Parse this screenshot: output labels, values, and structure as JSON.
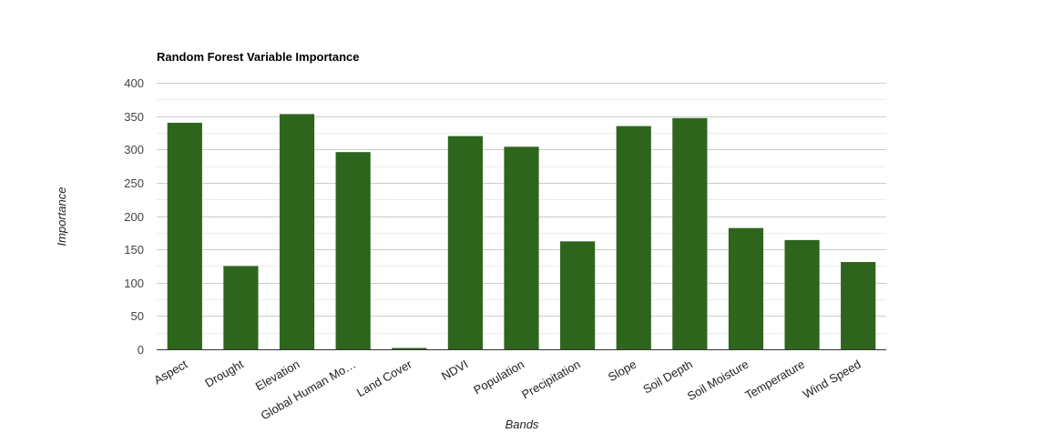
{
  "chart_data": {
    "type": "bar",
    "title": "Random Forest Variable Importance",
    "xlabel": "Bands",
    "ylabel": "Importance",
    "categories": [
      "Aspect",
      "Drought",
      "Elevation",
      "Global Human Mo…",
      "Land Cover",
      "NDVI",
      "Population",
      "Precipitation",
      "Slope",
      "Soil Depth",
      "Soil Moisture",
      "Temperature",
      "Wind Speed"
    ],
    "values": [
      340,
      125,
      353,
      296,
      2,
      320,
      304,
      162,
      335,
      347,
      182,
      164,
      131
    ],
    "ylim": [
      0,
      400
    ],
    "yticks": [
      0,
      50,
      100,
      150,
      200,
      250,
      300,
      350,
      400
    ],
    "grid": true,
    "legend": "none",
    "bar_color": "#2e651d",
    "gridline_color": "#cccccc",
    "minor_gridline_color": "#ebebeb",
    "axis_color": "#333333"
  }
}
